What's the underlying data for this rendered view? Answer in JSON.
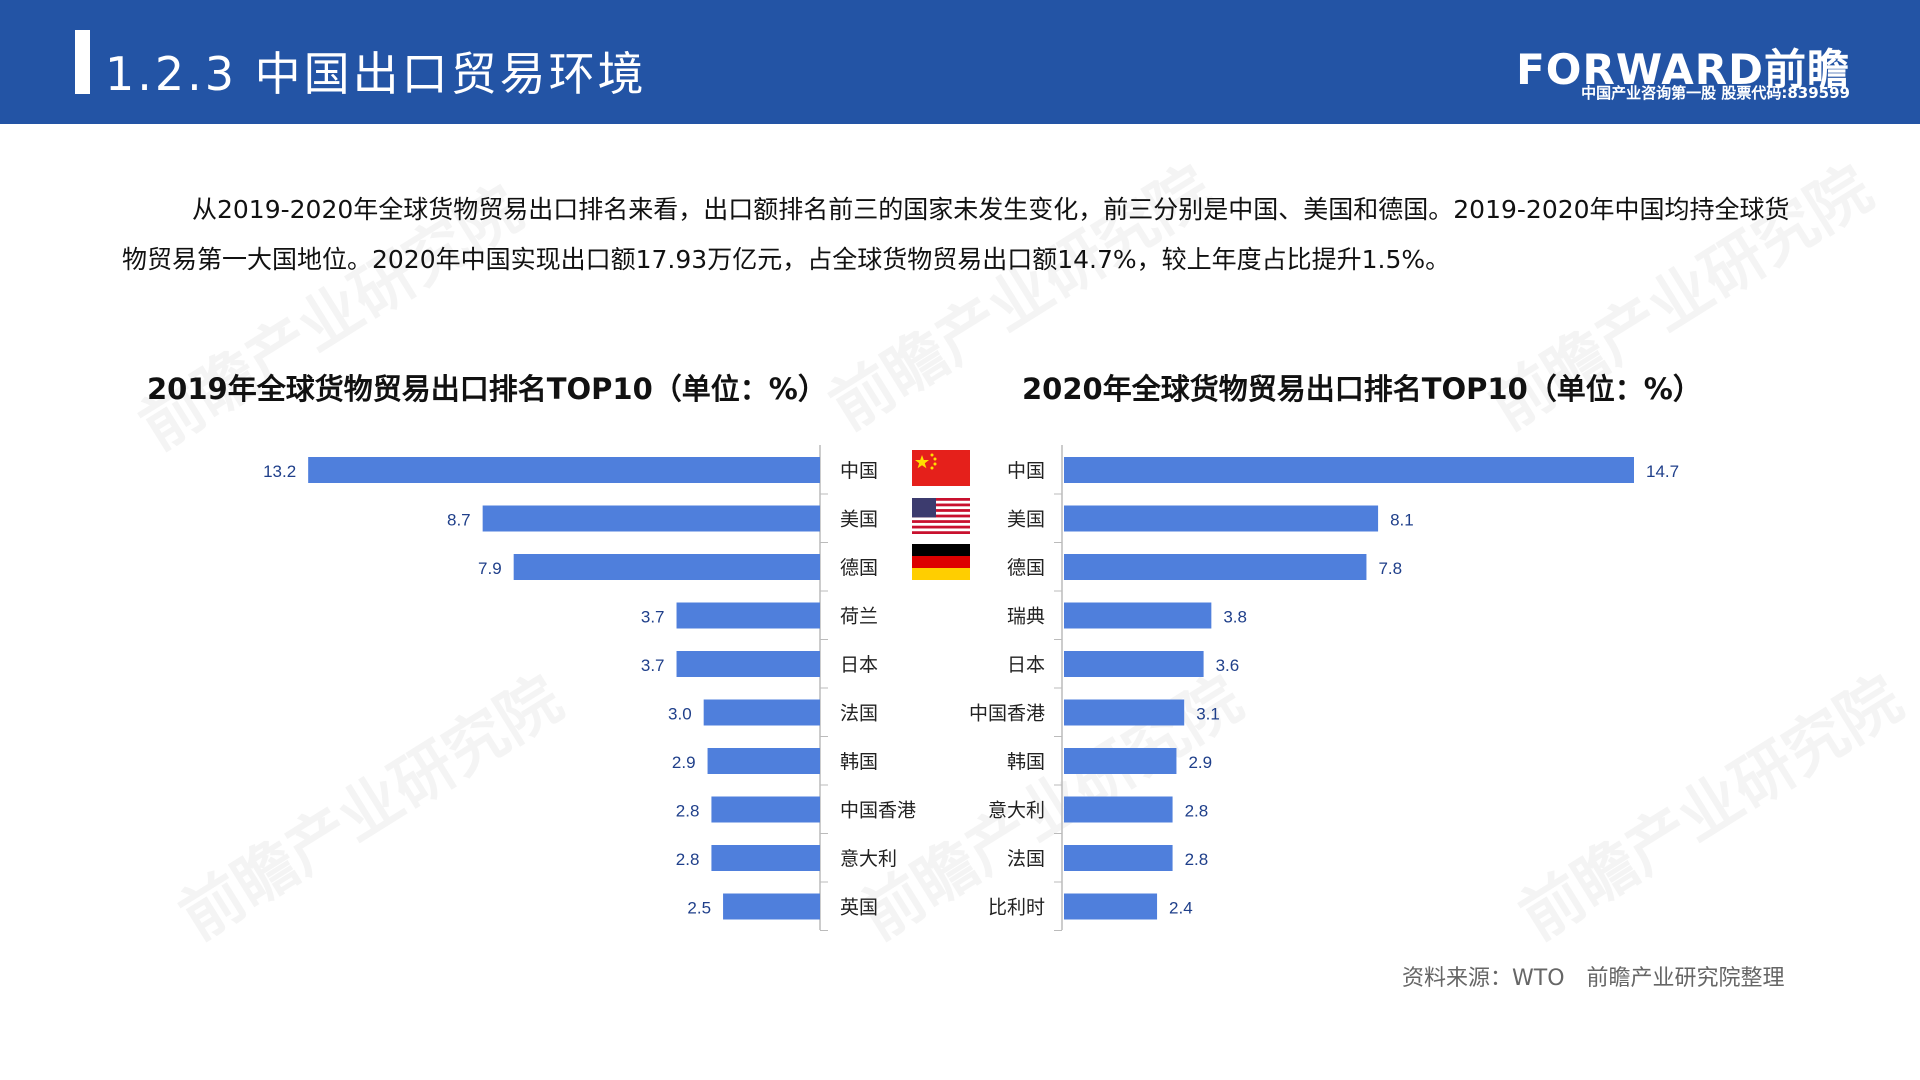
{
  "header": {
    "title": "1.2.3 中国出口贸易环境",
    "logo_text": "FORWARD前瞻",
    "logo_sub": "中国产业咨询第一股 股票代码:839599"
  },
  "watermark": "前瞻产业研究院",
  "intro": "从2019-2020年全球货物贸易出口排名来看，出口额排名前三的国家未发生变化，前三分别是中国、美国和德国。2019-2020年中国均持全球货物贸易第一大国地位。2020年中国实现出口额17.93万亿元，占全球货物贸易出口额14.7%，较上年度占比提升1.5%。",
  "source": "资料来源：WTO　前瞻产业研究院整理",
  "colors": {
    "bar": "#4f7fdc",
    "header": "#2354a5",
    "label": "#1f3f8a"
  },
  "flags": [
    "china-flag-icon",
    "usa-flag-icon",
    "germany-flag-icon"
  ],
  "chart_data": [
    {
      "type": "bar",
      "title": "2019年全球货物贸易出口排名TOP10（单位：%）",
      "categories": [
        "中国",
        "美国",
        "德国",
        "荷兰",
        "日本",
        "法国",
        "韩国",
        "中国香港",
        "意大利",
        "英国"
      ],
      "values": [
        13.2,
        8.7,
        7.9,
        3.7,
        3.7,
        3.0,
        2.9,
        2.8,
        2.8,
        2.5
      ],
      "orientation": "horizontal-left"
    },
    {
      "type": "bar",
      "title": "2020年全球货物贸易出口排名TOP10（单位：%）",
      "categories": [
        "中国",
        "美国",
        "德国",
        "瑞典",
        "日本",
        "中国香港",
        "韩国",
        "意大利",
        "法国",
        "比利时"
      ],
      "values": [
        14.7,
        8.1,
        7.8,
        3.8,
        3.6,
        3.1,
        2.9,
        2.8,
        2.8,
        2.4
      ],
      "orientation": "horizontal-right"
    }
  ]
}
